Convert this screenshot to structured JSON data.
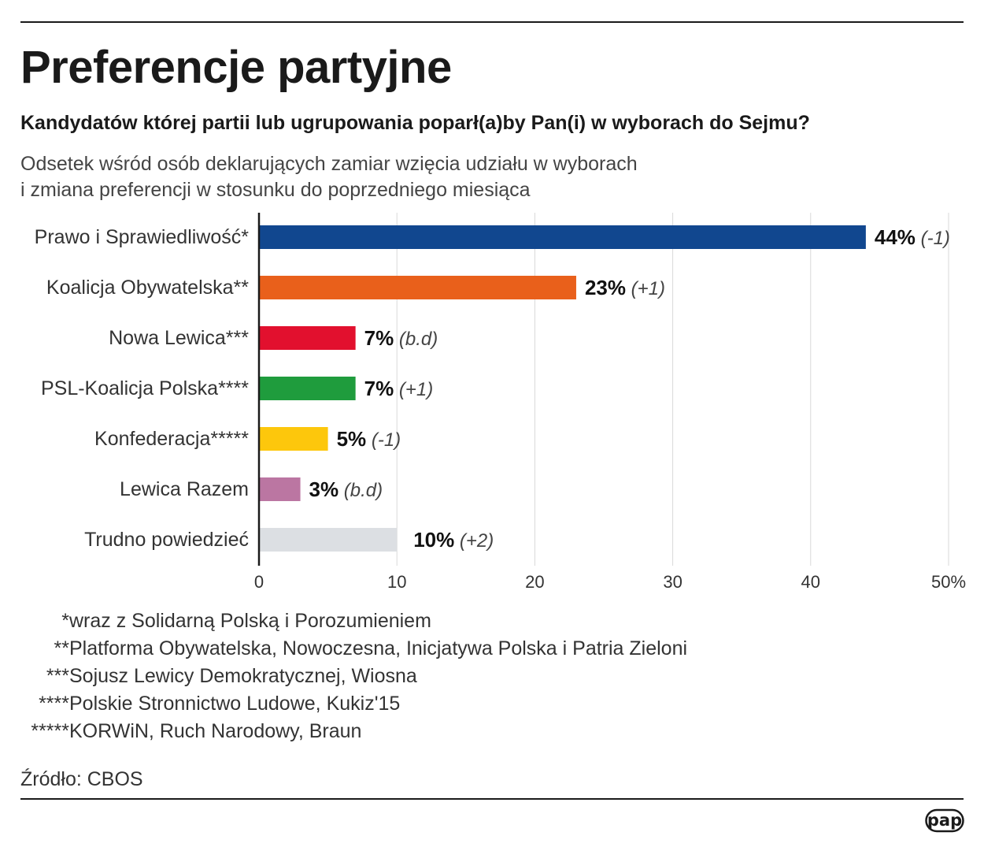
{
  "title": "Preferencje partyjne",
  "subtitle": "Kandydatów której partii lub ugrupowania poparł(a)by Pan(i) w wyborach do Sejmu?",
  "description": [
    "Odsetek wśród osób deklarujących zamiar wzięcia udziału w wyborach",
    "i zmiana preferencji w stosunku do poprzedniego miesiąca"
  ],
  "chart_data": {
    "type": "bar",
    "orientation": "horizontal",
    "categories": [
      "Prawo i Sprawiedliwość*",
      "Koalicja Obywatelska**",
      "Nowa Lewica***",
      "PSL-Koalicja Polska****",
      "Konfederacja*****",
      "Lewica Razem",
      "Trudno powiedzieć"
    ],
    "values": [
      44,
      23,
      7,
      7,
      5,
      3,
      10
    ],
    "value_labels": [
      "44%",
      "23%",
      "7%",
      "7%",
      "5%",
      "3%",
      "10%"
    ],
    "changes": [
      "(-1)",
      "(+1)",
      "(b.d)",
      "(+1)",
      "(-1)",
      "(b.d)",
      "(+2)"
    ],
    "colors": [
      "#11478f",
      "#e9601b",
      "#e2102e",
      "#1f9c3d",
      "#fdc70c",
      "#bb76a2",
      "#dcdfe3"
    ],
    "xlim": [
      0,
      50
    ],
    "xticks": [
      0,
      10,
      20,
      30,
      40,
      50
    ],
    "xtick_labels": [
      "0",
      "10",
      "20",
      "30",
      "40",
      "50%"
    ],
    "grid": true,
    "xlabel": "",
    "ylabel": ""
  },
  "footnotes": [
    {
      "stars": "*",
      "text": "wraz z Solidarną Polską i Porozumieniem"
    },
    {
      "stars": "**",
      "text": "Platforma Obywatelska, Nowoczesna, Inicjatywa Polska i Patria Zieloni"
    },
    {
      "stars": "***",
      "text": "Sojusz Lewicy Demokratycznej, Wiosna"
    },
    {
      "stars": "****",
      "text": "Polskie Stronnictwo Ludowe, Kukiz'15"
    },
    {
      "stars": "*****",
      "text": "KORWiN, Ruch Narodowy, Braun"
    }
  ],
  "source": "Źródło: CBOS",
  "logo": "pap"
}
